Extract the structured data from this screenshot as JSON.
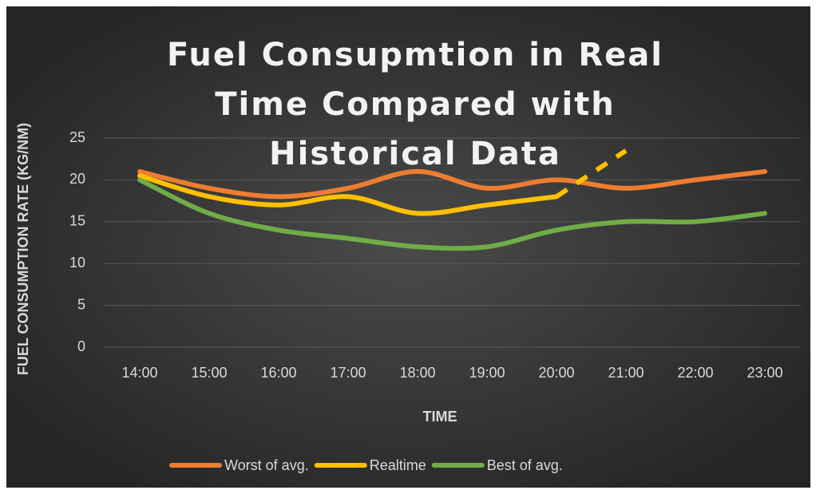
{
  "chart_data": {
    "type": "line",
    "title": "Fuel Consupmtion in Real Time Compared with Historical Data",
    "x_label": "TIME",
    "y_label": "FUEL CONSUMPTION RATE (KG/NM)",
    "categories": [
      "14:00",
      "15:00",
      "16:00",
      "17:00",
      "18:00",
      "19:00",
      "20:00",
      "21:00",
      "22:00",
      "23:00"
    ],
    "series": [
      {
        "name": "Worst of avg.",
        "color": "#ed7d31",
        "values": [
          21,
          19,
          18,
          19,
          21,
          19,
          20,
          19,
          20,
          21
        ]
      },
      {
        "name": "Realtime",
        "color": "#ffc000",
        "values": [
          20.5,
          18,
          17,
          18,
          16,
          17,
          18,
          null,
          null,
          null
        ]
      },
      {
        "name": "Best of avg.",
        "color": "#70ad47",
        "values": [
          20,
          16,
          14,
          13,
          12,
          12,
          14,
          15,
          15,
          16
        ]
      },
      {
        "color": "#ffc000",
        "dashed": true,
        "values": [
          null,
          null,
          null,
          null,
          null,
          null,
          18,
          23.5,
          null,
          null
        ]
      }
    ],
    "ylim": [
      0,
      25
    ],
    "yticks": [
      0,
      5,
      10,
      15,
      20,
      25
    ],
    "grid": true,
    "legend": "bottom"
  }
}
